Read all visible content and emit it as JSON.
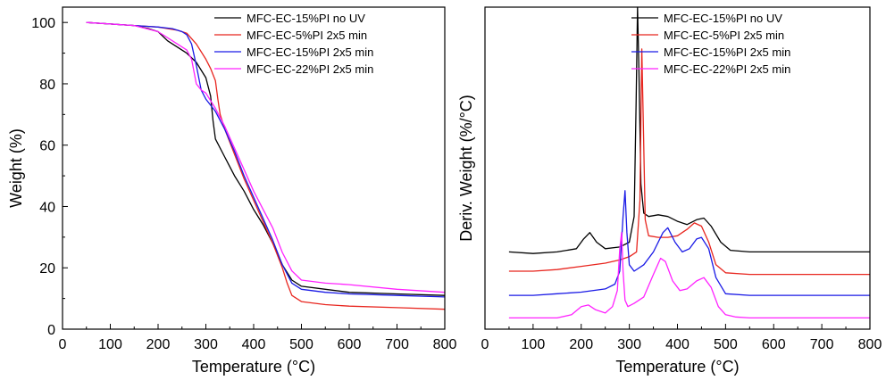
{
  "chart_data": [
    {
      "type": "line",
      "xlabel": "Temperature (°C)",
      "ylabel": "Weight (%)",
      "xlim": [
        0,
        800
      ],
      "ylim": [
        0,
        105
      ],
      "xticks": [
        0,
        100,
        200,
        300,
        400,
        500,
        600,
        700,
        800
      ],
      "yticks": [
        0,
        20,
        40,
        60,
        80,
        100
      ],
      "grid": false,
      "legend_position": "top-right",
      "series": [
        {
          "name": "MFC-EC-15%PI no UV",
          "color": "#000000",
          "x": [
            50,
            100,
            150,
            180,
            200,
            220,
            240,
            260,
            280,
            300,
            310,
            315,
            320,
            340,
            360,
            380,
            400,
            420,
            440,
            460,
            480,
            500,
            550,
            600,
            700,
            800
          ],
          "y": [
            100,
            99.5,
            99,
            98,
            97,
            94,
            92,
            90,
            87,
            82,
            76,
            68,
            62,
            56,
            50,
            45,
            39,
            34,
            28,
            21,
            16,
            14,
            13,
            12,
            11.5,
            11
          ]
        },
        {
          "name": "MFC-EC-5%PI 2x5 min",
          "color": "#e8261f",
          "x": [
            50,
            100,
            150,
            200,
            240,
            260,
            280,
            300,
            310,
            320,
            325,
            330,
            340,
            360,
            380,
            400,
            420,
            440,
            460,
            470,
            480,
            500,
            550,
            600,
            700,
            800
          ],
          "y": [
            100,
            99.5,
            99,
            98.5,
            97.5,
            96.5,
            93,
            88,
            85,
            81,
            75,
            70,
            65,
            57,
            49,
            42,
            35,
            28,
            20,
            15,
            11,
            9,
            8,
            7.5,
            7,
            6.5
          ]
        },
        {
          "name": "MFC-EC-15%PI 2x5 min",
          "color": "#1a1ae6",
          "x": [
            50,
            100,
            150,
            200,
            230,
            250,
            260,
            270,
            280,
            290,
            300,
            320,
            340,
            360,
            380,
            400,
            420,
            440,
            460,
            480,
            500,
            550,
            600,
            700,
            800
          ],
          "y": [
            100,
            99.5,
            99,
            98.5,
            98,
            97,
            96,
            93,
            86,
            78,
            75,
            71,
            65,
            58,
            50,
            43,
            36,
            29,
            21,
            15,
            13,
            12,
            11.5,
            11,
            10.5
          ]
        },
        {
          "name": "MFC-EC-22%PI 2x5 min",
          "color": "#ff22ff",
          "x": [
            50,
            100,
            150,
            200,
            230,
            260,
            270,
            280,
            290,
            300,
            320,
            340,
            360,
            380,
            400,
            420,
            440,
            460,
            480,
            500,
            550,
            600,
            700,
            800
          ],
          "y": [
            100,
            99.5,
            99,
            97,
            94,
            91,
            88,
            80,
            78,
            77,
            72,
            66,
            59,
            52,
            45,
            39,
            33,
            25,
            19,
            16,
            15,
            14.5,
            13,
            12
          ]
        }
      ]
    },
    {
      "type": "line",
      "xlabel": "Temperature (°C)",
      "ylabel": "Deriv. Weight (%/°C)",
      "xlim": [
        0,
        800
      ],
      "ylim": [
        0,
        100
      ],
      "xticks": [
        0,
        100,
        200,
        300,
        400,
        500,
        600,
        700,
        800
      ],
      "grid": false,
      "legend_position": "top-right",
      "series": [
        {
          "name": "MFC-EC-15%PI no UV",
          "color": "#000000",
          "x": [
            50,
            100,
            150,
            190,
            205,
            218,
            232,
            250,
            280,
            300,
            310,
            314,
            317,
            320,
            324,
            330,
            340,
            360,
            380,
            400,
            420,
            440,
            455,
            470,
            490,
            510,
            550,
            600,
            700,
            800
          ],
          "y": [
            24,
            23.5,
            24,
            25,
            28,
            30,
            27,
            25,
            25.5,
            27,
            35,
            70,
            100,
            80,
            45,
            36,
            35,
            35.5,
            35,
            33.5,
            32.5,
            34,
            34.5,
            32,
            27,
            24.5,
            24,
            24,
            24,
            24
          ]
        },
        {
          "name": "MFC-EC-5%PI 2x5 min",
          "color": "#e8261f",
          "x": [
            50,
            100,
            150,
            200,
            250,
            280,
            300,
            315,
            322,
            326,
            329,
            333,
            340,
            360,
            380,
            400,
            420,
            435,
            450,
            465,
            480,
            500,
            550,
            600,
            700,
            800
          ],
          "y": [
            18,
            18,
            18.5,
            19.5,
            20.5,
            21.5,
            22.5,
            24,
            40,
            87,
            65,
            34,
            29,
            28.5,
            28.5,
            29,
            31,
            33,
            32,
            27,
            20,
            17.5,
            17,
            17,
            17,
            17
          ]
        },
        {
          "name": "MFC-EC-15%PI 2x5 min",
          "color": "#1a1ae6",
          "x": [
            50,
            100,
            150,
            200,
            250,
            270,
            280,
            287,
            291,
            295,
            300,
            310,
            330,
            350,
            370,
            380,
            395,
            410,
            425,
            440,
            450,
            465,
            480,
            500,
            550,
            600,
            700,
            800
          ],
          "y": [
            10.5,
            10.5,
            11,
            11.5,
            12.5,
            14,
            18,
            35,
            43,
            30,
            20,
            18,
            20,
            24,
            30,
            31.5,
            27,
            24,
            25,
            28,
            28.5,
            25,
            16,
            11,
            10.5,
            10.5,
            10.5,
            10.5
          ]
        },
        {
          "name": "MFC-EC-22%PI 2x5 min",
          "color": "#ff22ff",
          "x": [
            50,
            100,
            150,
            180,
            200,
            215,
            230,
            250,
            265,
            275,
            280,
            284,
            287,
            291,
            297,
            310,
            330,
            350,
            365,
            375,
            390,
            405,
            420,
            440,
            455,
            470,
            485,
            500,
            520,
            550,
            600,
            700,
            800
          ],
          "y": [
            3.5,
            3.5,
            3.5,
            4.5,
            7,
            7.5,
            6,
            5,
            7,
            12,
            25,
            30,
            18,
            9,
            7,
            8,
            10,
            17,
            22,
            21,
            15,
            12,
            12.5,
            15,
            16,
            13,
            7,
            4.5,
            3.8,
            3.5,
            3.5,
            3.5,
            3.5
          ]
        }
      ]
    }
  ]
}
